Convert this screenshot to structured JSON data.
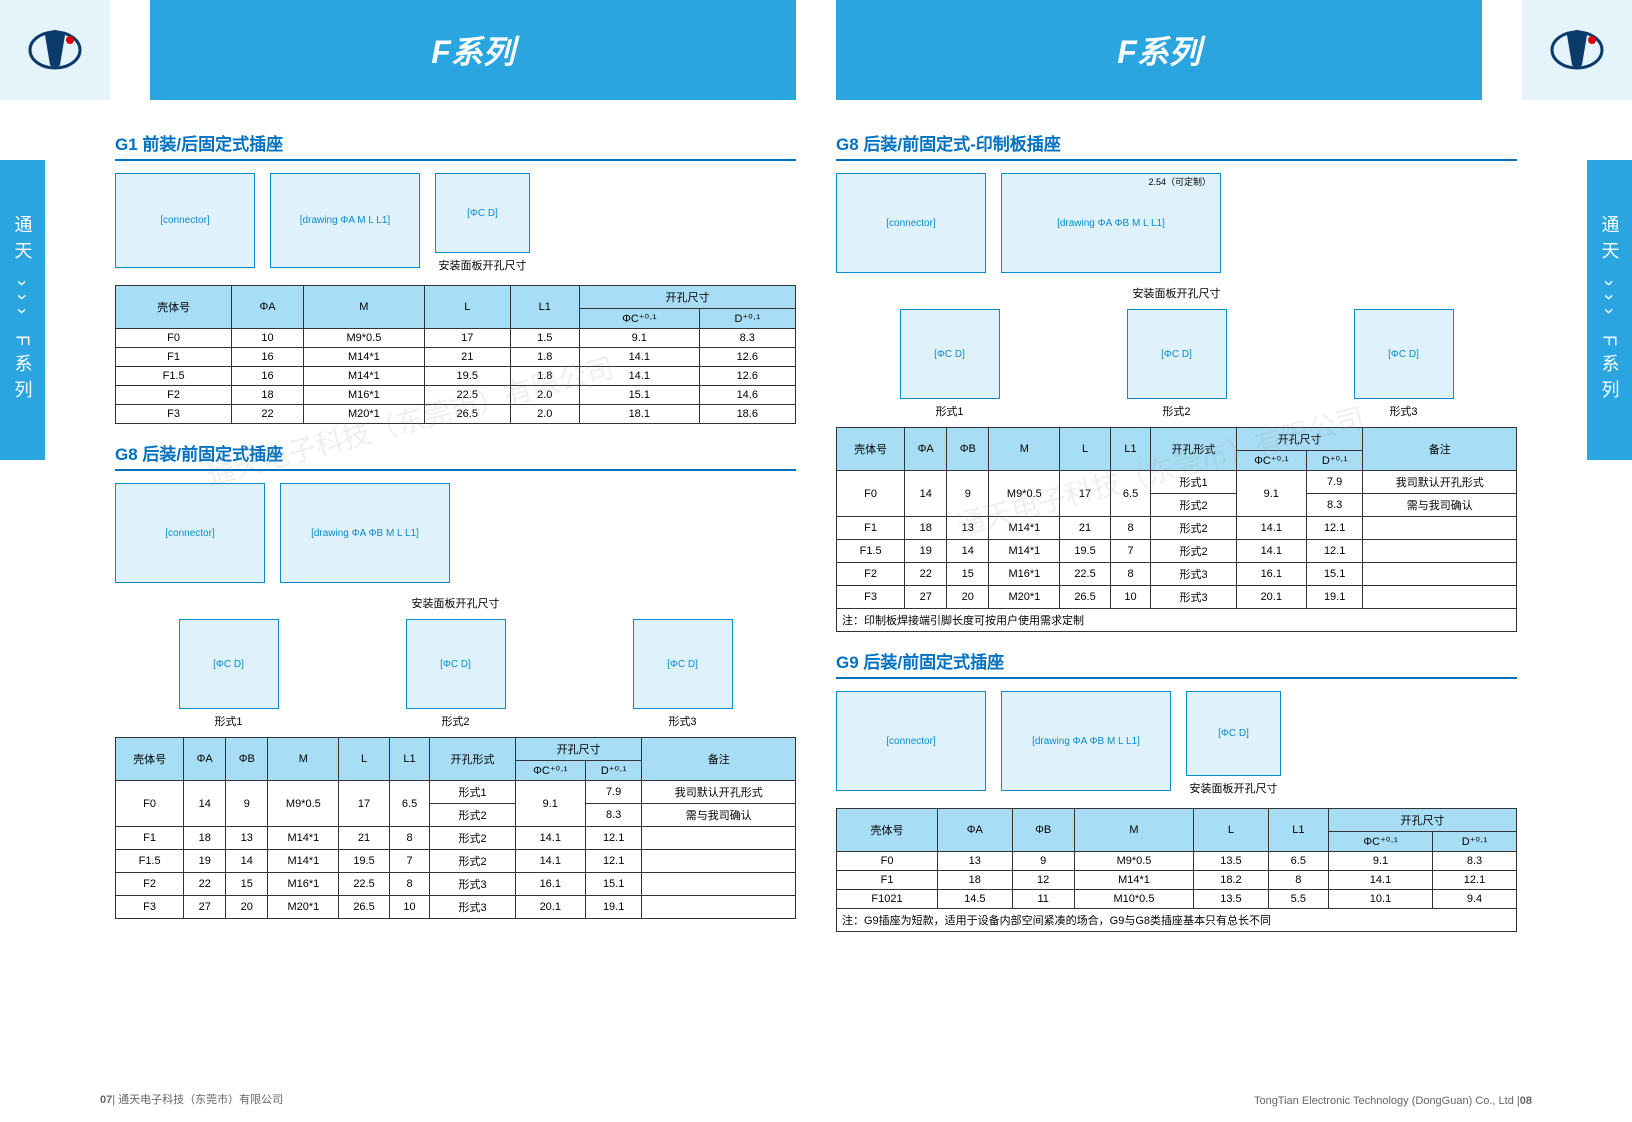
{
  "header": {
    "series_label": "F系列"
  },
  "side_tab": "通天 ››› F系列",
  "g1": {
    "title": "G1 前装/后固定式插座",
    "panel_label": "安装面板开孔尺寸",
    "table": {
      "head1": [
        "壳体号",
        "ΦA",
        "M",
        "L",
        "L1",
        "开孔尺寸"
      ],
      "head2": [
        "ΦC⁺⁰·¹",
        "D⁺⁰·¹"
      ],
      "rows": [
        [
          "F0",
          "10",
          "M9*0.5",
          "17",
          "1.5",
          "9.1",
          "8.3"
        ],
        [
          "F1",
          "16",
          "M14*1",
          "21",
          "1.8",
          "14.1",
          "12.6"
        ],
        [
          "F1.5",
          "16",
          "M14*1",
          "19.5",
          "1.8",
          "14.1",
          "12.6"
        ],
        [
          "F2",
          "18",
          "M16*1",
          "22.5",
          "2.0",
          "15.1",
          "14.6"
        ],
        [
          "F3",
          "22",
          "M20*1",
          "26.5",
          "2.0",
          "18.1",
          "18.6"
        ]
      ]
    }
  },
  "g8a": {
    "title": "G8 后装/前固定式插座",
    "panel_label": "安装面板开孔尺寸",
    "shapes": [
      "形式1",
      "形式2",
      "形式3"
    ],
    "table": {
      "head1": [
        "壳体号",
        "ΦA",
        "ΦB",
        "M",
        "L",
        "L1",
        "开孔形式",
        "开孔尺寸",
        "备注"
      ],
      "head2": [
        "ΦC⁺⁰·¹",
        "D⁺⁰·¹"
      ],
      "rows": [
        [
          "F0",
          "14",
          "9",
          "M9*0.5",
          "17",
          "6.5",
          "形式1",
          "9.1",
          "7.9",
          "我司默认开孔形式"
        ],
        [
          "",
          "",
          "",
          "",
          "",
          "",
          "形式2",
          "",
          "8.3",
          "需与我司确认"
        ],
        [
          "F1",
          "18",
          "13",
          "M14*1",
          "21",
          "8",
          "形式2",
          "14.1",
          "12.1",
          ""
        ],
        [
          "F1.5",
          "19",
          "14",
          "M14*1",
          "19.5",
          "7",
          "形式2",
          "14.1",
          "12.1",
          ""
        ],
        [
          "F2",
          "22",
          "15",
          "M16*1",
          "22.5",
          "8",
          "形式3",
          "16.1",
          "15.1",
          ""
        ],
        [
          "F3",
          "27",
          "20",
          "M20*1",
          "26.5",
          "10",
          "形式3",
          "20.1",
          "19.1",
          ""
        ]
      ]
    }
  },
  "g8b": {
    "title": "G8 后装/前固定式-印制板插座",
    "pitch_label": "2.54（可定制）",
    "panel_label": "安装面板开孔尺寸",
    "shapes": [
      "形式1",
      "形式2",
      "形式3"
    ],
    "table": {
      "head1": [
        "壳体号",
        "ΦA",
        "ΦB",
        "M",
        "L",
        "L1",
        "开孔形式",
        "开孔尺寸",
        "备注"
      ],
      "head2": [
        "ΦC⁺⁰·¹",
        "D⁺⁰·¹"
      ],
      "rows": [
        [
          "F0",
          "14",
          "9",
          "M9*0.5",
          "17",
          "6.5",
          "形式1",
          "9.1",
          "7.9",
          "我司默认开孔形式"
        ],
        [
          "",
          "",
          "",
          "",
          "",
          "",
          "形式2",
          "",
          "8.3",
          "需与我司确认"
        ],
        [
          "F1",
          "18",
          "13",
          "M14*1",
          "21",
          "8",
          "形式2",
          "14.1",
          "12.1",
          ""
        ],
        [
          "F1.5",
          "19",
          "14",
          "M14*1",
          "19.5",
          "7",
          "形式2",
          "14.1",
          "12.1",
          ""
        ],
        [
          "F2",
          "22",
          "15",
          "M16*1",
          "22.5",
          "8",
          "形式3",
          "16.1",
          "15.1",
          ""
        ],
        [
          "F3",
          "27",
          "20",
          "M20*1",
          "26.5",
          "10",
          "形式3",
          "20.1",
          "19.1",
          ""
        ]
      ],
      "note": "注：印制板焊接端引脚长度可按用户使用需求定制"
    }
  },
  "g9": {
    "title": "G9 后装/前固定式插座",
    "panel_label": "安装面板开孔尺寸",
    "table": {
      "head1": [
        "壳体号",
        "ΦA",
        "ΦB",
        "M",
        "L",
        "L1",
        "开孔尺寸"
      ],
      "head2": [
        "ΦC⁺⁰·¹",
        "D⁺⁰·¹"
      ],
      "rows": [
        [
          "F0",
          "13",
          "9",
          "M9*0.5",
          "13.5",
          "6.5",
          "9.1",
          "8.3"
        ],
        [
          "F1",
          "18",
          "12",
          "M14*1",
          "18.2",
          "8",
          "14.1",
          "12.1"
        ],
        [
          "F1021",
          "14.5",
          "11",
          "M10*0.5",
          "13.5",
          "5.5",
          "10.1",
          "9.4"
        ]
      ],
      "note": "注：G9插座为短款，适用于设备内部空间紧凑的场合，G9与G8类插座基本只有总长不同"
    }
  },
  "footer": {
    "left_page": "07",
    "left_company": "通天电子科技（东莞市）有限公司",
    "right_company": "TongTian Electronic Technology (DongGuan) Co., Ltd",
    "right_page": "08"
  },
  "watermark": "通天电子科技（东莞市）有限公司"
}
